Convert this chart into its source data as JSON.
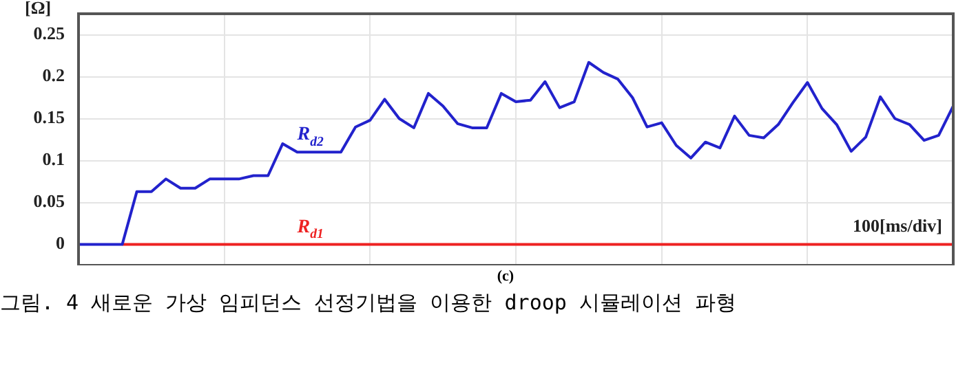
{
  "chart_data": {
    "type": "line",
    "ylabel": "[Ω]",
    "annotations": [
      "100[ms/div]",
      "(c)",
      "그림. 4 새로운 가상 임피던스 선정기법을 이용한 droop 시뮬레이션 파형"
    ],
    "categories": [
      null,
      null,
      null,
      null,
      null,
      null,
      null,
      null,
      null,
      null,
      null,
      null,
      null,
      null,
      null,
      null,
      null,
      null,
      null,
      null,
      null,
      null,
      null,
      null,
      null,
      null,
      null,
      null,
      null,
      null,
      null,
      null,
      null,
      null,
      null,
      null,
      null,
      null,
      null,
      null,
      null,
      null,
      null,
      null,
      null,
      null,
      null,
      null,
      null,
      null,
      null,
      null,
      null,
      null,
      null,
      null,
      null,
      null,
      null,
      null,
      null
    ],
    "ylim": [
      -0.025,
      0.275
    ],
    "yticks": [
      0,
      0.05,
      0.1,
      0.15,
      0.2,
      0.25
    ],
    "tick_labels": "y",
    "grid": true,
    "legend": false,
    "marker": "none",
    "line_style": "solid",
    "series": [
      {
        "name": "R$_{d1}$",
        "color": "#ee2222",
        "values": [
          null,
          null,
          null,
          0,
          0,
          0,
          0,
          0,
          0,
          0,
          0,
          0,
          0,
          0,
          0,
          0,
          0,
          0,
          0,
          0,
          0,
          0,
          0,
          0,
          0,
          0,
          0,
          0,
          0,
          0,
          0,
          0,
          0,
          0,
          0,
          0,
          0,
          0,
          0,
          0,
          0,
          0,
          0,
          0,
          0,
          0,
          0,
          0,
          0,
          0,
          0,
          0,
          0,
          0,
          0,
          0,
          0,
          0,
          0,
          0,
          0
        ]
      },
      {
        "name": "R$_{d2}$",
        "color": "#2222cc",
        "values": [
          0,
          0,
          0,
          0,
          0.063,
          0.063,
          0.078,
          0.067,
          0.067,
          0.078,
          0.078,
          0.078,
          0.082,
          0.082,
          0.12,
          0.11,
          0.11,
          0.11,
          0.11,
          0.14,
          0.148,
          0.173,
          0.15,
          0.139,
          0.18,
          0.165,
          0.144,
          0.139,
          0.139,
          0.18,
          0.17,
          0.172,
          0.194,
          0.163,
          0.17,
          0.217,
          0.205,
          0.197,
          0.175,
          0.14,
          0.145,
          0.118,
          0.103,
          0.122,
          0.115,
          0.153,
          0.13,
          0.127,
          0.143,
          0.169,
          0.193,
          0.162,
          0.143,
          0.111,
          0.128,
          0.176,
          0.15,
          0.143,
          0.124,
          0.13,
          0.165
        ]
      }
    ]
  }
}
